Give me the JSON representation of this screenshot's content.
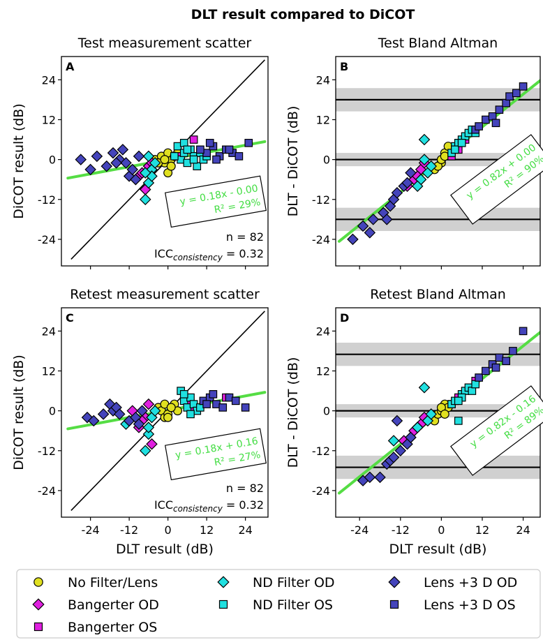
{
  "suptitle": "DLT result compared to DiCOT",
  "colors": {
    "fit_line": "#55dd44",
    "fit_text": "#44dd44",
    "band": "#d0d0d0",
    "No Filter/Lens": "#e0e020",
    "Bangerter OD": "#e020e0",
    "Bangerter OS": "#e020e0",
    "ND Filter OD": "#20e0e0",
    "ND Filter OS": "#20e0e0",
    "Lens +3 D OD": "#4444bb",
    "Lens +3 D OS": "#4444bb"
  },
  "legend": {
    "location": "bottom",
    "entries": [
      {
        "label": "No Filter/Lens",
        "marker": "circle",
        "color_key": "No Filter/Lens"
      },
      {
        "label": "ND Filter OD",
        "marker": "diamond",
        "color_key": "ND Filter OD"
      },
      {
        "label": "Lens +3 D OD",
        "marker": "diamond",
        "color_key": "Lens +3 D OD"
      },
      {
        "label": "Bangerter OD",
        "marker": "diamond",
        "color_key": "Bangerter OD"
      },
      {
        "label": "ND Filter OS",
        "marker": "square",
        "color_key": "ND Filter OS"
      },
      {
        "label": "Lens +3 D OS",
        "marker": "square",
        "color_key": "Lens +3 D OS"
      },
      {
        "label": "Bangerter OS",
        "marker": "square",
        "color_key": "Bangerter OS"
      }
    ]
  },
  "chart_data": [
    {
      "panel": "A",
      "type": "scatter",
      "title": "Test measurement scatter",
      "xlabel": "",
      "ylabel": "DiCOT result (dB)",
      "xlim": [
        -33,
        31
      ],
      "ylim": [
        -32,
        31
      ],
      "xticks": [
        -24,
        -12,
        0,
        12,
        24
      ],
      "yticks": [
        24,
        12,
        0,
        -12,
        -24
      ],
      "xtick_labels": [
        "-24",
        "-12",
        "0",
        "12",
        "24"
      ],
      "ytick_labels": [
        "24",
        "12",
        "0",
        "-12",
        "-24"
      ],
      "show_xtick_labels": false,
      "identity_line": [
        -30,
        30
      ],
      "fit": {
        "slope": 0.18,
        "intercept": 0.0,
        "x_range": [
          -31,
          30
        ],
        "eq": "y = 0.18x - 0.00",
        "r2": "R² = 29%"
      },
      "annotation": {
        "n": "n = 82",
        "icc_base": "ICC",
        "icc_sub": "consistency",
        "icc_val": " = 0.32"
      },
      "series": [
        {
          "name": "No Filter/Lens",
          "marker": "circle",
          "x": [
            -4,
            -2,
            -1,
            0,
            1,
            2,
            3,
            0,
            -3,
            1,
            2,
            -1
          ],
          "y": [
            0,
            1,
            -1,
            -4,
            0,
            1,
            2,
            2,
            -1,
            -2,
            1,
            0
          ]
        },
        {
          "name": "Bangerter OD",
          "marker": "diamond",
          "x": [
            -9,
            -7,
            -6,
            -5,
            -8
          ],
          "y": [
            -5,
            -9,
            -2,
            -1,
            -4
          ]
        },
        {
          "name": "Bangerter OS",
          "marker": "square",
          "x": [
            8,
            6,
            4
          ],
          "y": [
            6,
            3,
            1
          ]
        },
        {
          "name": "ND Filter OD",
          "marker": "diamond",
          "x": [
            -7,
            -6,
            -5,
            -4,
            -6,
            -5,
            -7
          ],
          "y": [
            -12,
            -7,
            -3,
            -1,
            1,
            -5,
            -4
          ]
        },
        {
          "name": "ND Filter OS",
          "marker": "square",
          "x": [
            3,
            4,
            5,
            6,
            7,
            8,
            9,
            10,
            11,
            12,
            5,
            6,
            8,
            2
          ],
          "y": [
            4,
            0,
            5,
            -1,
            3,
            1,
            -2,
            2,
            0,
            1,
            2,
            3,
            0,
            1
          ]
        },
        {
          "name": "Lens +3 D OD",
          "marker": "diamond",
          "x": [
            -27,
            -24,
            -22,
            -19,
            -17,
            -15,
            -13,
            -12,
            -11,
            -10,
            -9,
            -14,
            -16
          ],
          "y": [
            0,
            -3,
            1,
            -2,
            2,
            0,
            -1,
            -5,
            -3,
            -6,
            1,
            3,
            -1
          ]
        },
        {
          "name": "Lens +3 D OS",
          "marker": "square",
          "x": [
            12,
            14,
            16,
            18,
            20,
            22,
            25,
            19,
            13,
            15,
            10
          ],
          "y": [
            2,
            4,
            1,
            3,
            2,
            1,
            5,
            3,
            5,
            0,
            3
          ]
        }
      ]
    },
    {
      "panel": "B",
      "type": "scatter",
      "title": "Test Bland Altman",
      "xlabel": "",
      "ylabel": "DLT - DiCOT (dB)",
      "xlim": [
        -31,
        29
      ],
      "ylim": [
        -32,
        31
      ],
      "xticks": [
        -24,
        -12,
        0,
        12,
        24
      ],
      "yticks": [
        24,
        12,
        0,
        -12,
        -24
      ],
      "xtick_labels": [
        "-24",
        "-12",
        "0",
        "12",
        "24"
      ],
      "ytick_labels": [
        "24",
        "12",
        "0",
        "-12",
        "-24"
      ],
      "show_xtick_labels": false,
      "bands": [
        {
          "y": 18,
          "half": 3.5
        },
        {
          "y": 0,
          "half": 2
        },
        {
          "y": -18,
          "half": 3.5
        }
      ],
      "fit": {
        "slope": 0.82,
        "intercept": 0.0,
        "x_range": [
          -30,
          29
        ],
        "eq": "y = 0.82x + 0.00",
        "r2": "R² = 90%"
      },
      "series": [
        {
          "name": "No Filter/Lens",
          "marker": "circle",
          "x": [
            -2,
            0,
            1,
            2,
            -1,
            0,
            1
          ],
          "y": [
            -3,
            -1,
            2,
            4,
            -2,
            0,
            1
          ]
        },
        {
          "name": "Bangerter OD",
          "marker": "diamond",
          "x": [
            -10,
            -8,
            -6,
            -5,
            -7
          ],
          "y": [
            -8,
            -6,
            -3,
            -1,
            -5
          ]
        },
        {
          "name": "Bangerter OS",
          "marker": "square",
          "x": [
            7,
            5,
            3
          ],
          "y": [
            6,
            3,
            1
          ]
        },
        {
          "name": "ND Filter OD",
          "marker": "diamond",
          "x": [
            -5,
            -4,
            -3,
            -6,
            -7,
            -5
          ],
          "y": [
            6,
            -4,
            -2,
            -6,
            -8,
            0
          ]
        },
        {
          "name": "ND Filter OS",
          "marker": "square",
          "x": [
            3,
            4,
            5,
            6,
            7,
            8,
            9,
            10,
            4,
            6
          ],
          "y": [
            2,
            4,
            5,
            6,
            7,
            8,
            9,
            8,
            3,
            5
          ]
        },
        {
          "name": "Lens +3 D OD",
          "marker": "diamond",
          "x": [
            -26,
            -23,
            -21,
            -20,
            -17,
            -15,
            -14,
            -13,
            -11,
            -10,
            -9,
            -16
          ],
          "y": [
            -24,
            -20,
            -22,
            -18,
            -16,
            -14,
            -12,
            -10,
            -8,
            -7,
            -4,
            -18
          ]
        },
        {
          "name": "Lens +3 D OS",
          "marker": "square",
          "x": [
            10,
            13,
            15,
            17,
            19,
            20,
            22,
            24,
            16,
            11
          ],
          "y": [
            9,
            12,
            13,
            15,
            17,
            19,
            20,
            22,
            11,
            10
          ]
        }
      ]
    },
    {
      "panel": "C",
      "type": "scatter",
      "title": "Retest measurement scatter",
      "xlabel": "DLT result (dB)",
      "ylabel": "DiCOT result (dB)",
      "xlim": [
        -33,
        31
      ],
      "ylim": [
        -32,
        31
      ],
      "xticks": [
        -24,
        -12,
        0,
        12,
        24
      ],
      "yticks": [
        24,
        12,
        0,
        -12,
        -24
      ],
      "xtick_labels": [
        "-24",
        "-12",
        "0",
        "12",
        "24"
      ],
      "ytick_labels": [
        "24",
        "12",
        "0",
        "-12",
        "-24"
      ],
      "show_xtick_labels": true,
      "identity_line": [
        -30,
        30
      ],
      "fit": {
        "slope": 0.18,
        "intercept": 0.16,
        "x_range": [
          -31,
          30
        ],
        "eq": "y = 0.18x + 0.16",
        "r2": "R² = 27%"
      },
      "annotation": {
        "n": "n = 82",
        "icc_base": "ICC",
        "icc_sub": "consistency",
        "icc_val": " = 0.32"
      },
      "series": [
        {
          "name": "No Filter/Lens",
          "marker": "circle",
          "x": [
            -3,
            -2,
            -1,
            0,
            1,
            2,
            3,
            -1,
            0,
            1
          ],
          "y": [
            1,
            0,
            -2,
            -1,
            1,
            2,
            0,
            2,
            -2,
            1
          ]
        },
        {
          "name": "Bangerter OD",
          "marker": "diamond",
          "x": [
            -11,
            -9,
            -7,
            -6,
            -5,
            -8
          ],
          "y": [
            0,
            -5,
            -2,
            2,
            -10,
            -3
          ]
        },
        {
          "name": "Bangerter OS",
          "marker": "square",
          "x": [
            18,
            8,
            6
          ],
          "y": [
            4,
            1,
            3
          ]
        },
        {
          "name": "ND Filter OD",
          "marker": "diamond",
          "x": [
            -13,
            -7,
            -6,
            -5,
            -4,
            -6
          ],
          "y": [
            -4,
            -12,
            -7,
            -2,
            0,
            -5
          ]
        },
        {
          "name": "ND Filter OS",
          "marker": "square",
          "x": [
            4,
            5,
            6,
            7,
            8,
            9,
            10,
            11,
            5,
            7
          ],
          "y": [
            6,
            3,
            1,
            4,
            2,
            0,
            1,
            3,
            5,
            -1
          ]
        },
        {
          "name": "Lens +3 D OD",
          "marker": "diamond",
          "x": [
            -25,
            -23,
            -20,
            -18,
            -17,
            -16,
            -15,
            -12,
            -10,
            -9,
            -8
          ],
          "y": [
            -2,
            -3,
            -1,
            2,
            0,
            1,
            -1,
            -3,
            -2,
            -4,
            0
          ]
        },
        {
          "name": "Lens +3 D OS",
          "marker": "square",
          "x": [
            11,
            13,
            15,
            17,
            19,
            21,
            24,
            14,
            12
          ],
          "y": [
            3,
            4,
            2,
            1,
            4,
            3,
            1,
            5,
            2
          ]
        }
      ]
    },
    {
      "panel": "D",
      "type": "scatter",
      "title": "Retest Bland Altman",
      "xlabel": "DLT result (dB)",
      "ylabel": "DLT - DiCOT (dB)",
      "xlim": [
        -31,
        29
      ],
      "ylim": [
        -32,
        31
      ],
      "xticks": [
        -24,
        -12,
        0,
        12,
        24
      ],
      "yticks": [
        24,
        12,
        0,
        -12,
        -24
      ],
      "xtick_labels": [
        "-24",
        "-12",
        "0",
        "12",
        "24"
      ],
      "ytick_labels": [
        "24",
        "12",
        "0",
        "-12",
        "-24"
      ],
      "show_xtick_labels": true,
      "bands": [
        {
          "y": 17,
          "half": 3.5
        },
        {
          "y": 0,
          "half": 2
        },
        {
          "y": -17,
          "half": 3.5
        }
      ],
      "fit": {
        "slope": 0.82,
        "intercept": -0.16,
        "x_range": [
          -30,
          29
        ],
        "eq": "y = 0.82x - 0.16",
        "r2": "R² = 89%"
      },
      "series": [
        {
          "name": "No Filter/Lens",
          "marker": "circle",
          "x": [
            -2,
            -1,
            0,
            1,
            2,
            0,
            1
          ],
          "y": [
            -3,
            -1,
            0,
            2,
            1,
            1,
            -1
          ]
        },
        {
          "name": "Bangerter OD",
          "marker": "diamond",
          "x": [
            -11,
            -9,
            -8,
            -6,
            -5,
            -7
          ],
          "y": [
            -9,
            -8,
            -6,
            -4,
            -2,
            -5
          ]
        },
        {
          "name": "Bangerter OS",
          "marker": "square",
          "x": [
            10,
            5,
            3
          ],
          "y": [
            9,
            4,
            2
          ]
        },
        {
          "name": "ND Filter OD",
          "marker": "diamond",
          "x": [
            -14,
            -7,
            -5,
            -4,
            -3
          ],
          "y": [
            -9,
            -5,
            7,
            -3,
            -1
          ]
        },
        {
          "name": "ND Filter OS",
          "marker": "square",
          "x": [
            3,
            4,
            5,
            6,
            7,
            8,
            9,
            10,
            6,
            5
          ],
          "y": [
            2,
            3,
            -3,
            5,
            6,
            7,
            6,
            8,
            4,
            3
          ]
        },
        {
          "name": "Lens +3 D OD",
          "marker": "diamond",
          "x": [
            -23,
            -21,
            -18,
            -16,
            -15,
            -14,
            -12,
            -10,
            -9,
            -13
          ],
          "y": [
            -21,
            -20,
            -20,
            -16,
            -15,
            -14,
            -12,
            -10,
            -8,
            -3
          ]
        },
        {
          "name": "Lens +3 D OS",
          "marker": "square",
          "x": [
            11,
            13,
            15,
            17,
            19,
            21,
            24,
            16
          ],
          "y": [
            10,
            12,
            14,
            16,
            15,
            18,
            24,
            13
          ]
        }
      ]
    }
  ]
}
